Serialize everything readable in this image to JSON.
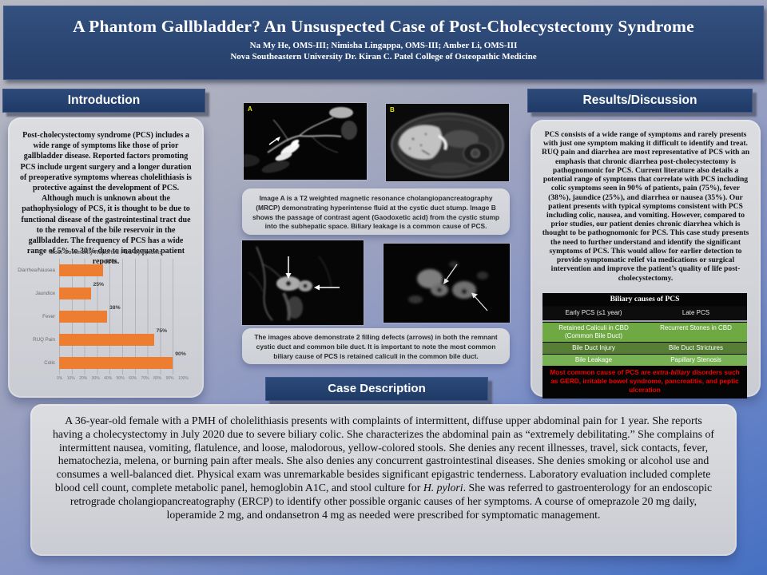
{
  "banner": {
    "title": "A Phantom Gallbladder? An Unsuspected Case of Post-Cholecystectomy Syndrome",
    "authors": "Na My He, OMS-III; Nimisha Lingappa, OMS-III; Amber Li, OMS-III",
    "institution": "Nova Southeastern University Dr. Kiran C. Patel College of Osteopathic Medicine"
  },
  "intro": {
    "header": "Introduction",
    "body": "Post-cholecystectomy syndrome (PCS) includes a wide range of symptoms like those of prior gallbladder disease. Reported factors promoting PCS include urgent surgery and a longer duration of preoperative symptoms whereas cholelithiasis is protective against the development of PCS.  Although much is unknown about the pathophysiology of PCS, it is thought to be due to functional disease of the gastrointestinal tract due to the removal of the bile reservoir in the gallbladder. The frequency of PCS has a wide range of 5% to 30% due to inadequate patient reports."
  },
  "chart_data": {
    "type": "bar",
    "orientation": "horizontal",
    "title": "Most Commonly Reported PCS Symptoms",
    "categories": [
      "Diarrhea/Nausea",
      "Jaundice",
      "Fever",
      "RUQ Pain",
      "Colic"
    ],
    "values": [
      35,
      25,
      38,
      75,
      90
    ],
    "value_labels": [
      "35%",
      "25%",
      "38%",
      "75%",
      "90%"
    ],
    "x_ticks": [
      "0%",
      "10%",
      "20%",
      "30%",
      "40%",
      "50%",
      "60%",
      "70%",
      "80%",
      "90%",
      "100%"
    ],
    "xlim": [
      0,
      100
    ],
    "bar_color": "#ed7d31",
    "grid": true,
    "legend": false
  },
  "imaging": {
    "image_a_label": "A",
    "image_b_label": "B",
    "caption1": "Image A is a T2 weighted magnetic resonance cholangiopancreatography (MRCP) demonstrating hyperintense fluid at the cystic duct stump. Image B shows the passage of contrast agent (Gaodoxetic acid) from the cystic stump into the subhepatic space. Biliary leakage is a common cause of PCS.",
    "caption2": "The images above demonstrate 2 filling defects (arrows) in both the remnant cystic duct and common bile duct. It is important to note the most common biliary cause of PCS is retained caliculi in the common bile duct."
  },
  "results": {
    "header": "Results/Discussion",
    "body": "PCS consists of a wide range of symptoms and rarely presents with just one symptom making it difficult to identify and treat. RUQ pain and diarrhea are most representative of PCS with an emphasis that chronic diarrhea post-cholecystectomy is pathognomonic for PCS. Current literature also details a potential range of symptoms that correlate with PCS including colic symptoms seen in 90% of patients, pain (75%), fever (38%), jaundice (25%), and diarrhea or nausea (35%). Our patient presents with typical symptoms consistent with PCS including colic, nausea, and vomiting. However, compared to prior studies, our patient denies chronic diarrhea which is thought to be pathognomonic for PCS. This case study presents the need to further understand and identify the significant symptoms of PCS. This would allow for earlier detection to provide symptomatic relief via medications or surgical intervention and improve the patient’s quality of life post-cholecystectomy."
  },
  "table": {
    "title": "Biliary causes of PCS",
    "col_early": "Early PCS (≤1 year)",
    "col_late": "Late PCS",
    "rows": [
      {
        "early": "Retained Caliculi in CBD (Common Bile Duct)",
        "late": "Recurrent Stones in CBD"
      },
      {
        "early": "Bile Duct Injury",
        "late": "Bile Duct Strictures"
      },
      {
        "early": "Bile Leakage",
        "late": "Papillary Stenosis"
      }
    ],
    "footer_pre": "Most common cause of PCS are ",
    "footer_italic": "extra-biliary",
    "footer_post": " disorders such as GERD, irritable bowel syndrome, pancreatitis, and peptic ulceration"
  },
  "case": {
    "header": "Case Description",
    "body_pre": "A 36-year-old female with a PMH of cholelithiasis presents with complaints of intermittent, diffuse upper abdominal pain for 1 year. She reports having a cholecystectomy in July 2020 due to severe biliary colic. She characterizes the abdominal pain as “extremely debilitating.” She complains of intermittent nausea, vomiting, flatulence, and loose, malodorous, yellow-colored stools. She denies any recent illnesses, travel, sick contacts, fever, hematochezia, melena, or burning pain after meals. She also denies any concurrent gastrointestinal diseases. She denies smoking or alcohol use and consumes a well-balanced diet. Physical exam was unremarkable besides significant epigastric tenderness. Laboratory evaluation included complete blood cell count, complete metabolic panel, hemoglobin A1C, and stool culture for ",
    "body_italic": "H. pylori",
    "body_post": ". She was referred to gastroenterology for an endoscopic retrograde cholangiopancreatography (ERCP) to identify other possible organic causes of her symptoms. A course of omeprazole 20 mg daily, loperamide 2 mg, and ondansetron 4 mg as needed were prescribed for symptomatic management."
  },
  "colors": {
    "banner_navy": "#2b4673",
    "header_navy": "#1f3a66",
    "card_gray": "#d6d7db",
    "bar_orange": "#ed7d31",
    "table_green_light": "#6fa944",
    "table_green_dark": "#567f35",
    "table_red": "#f50000"
  }
}
